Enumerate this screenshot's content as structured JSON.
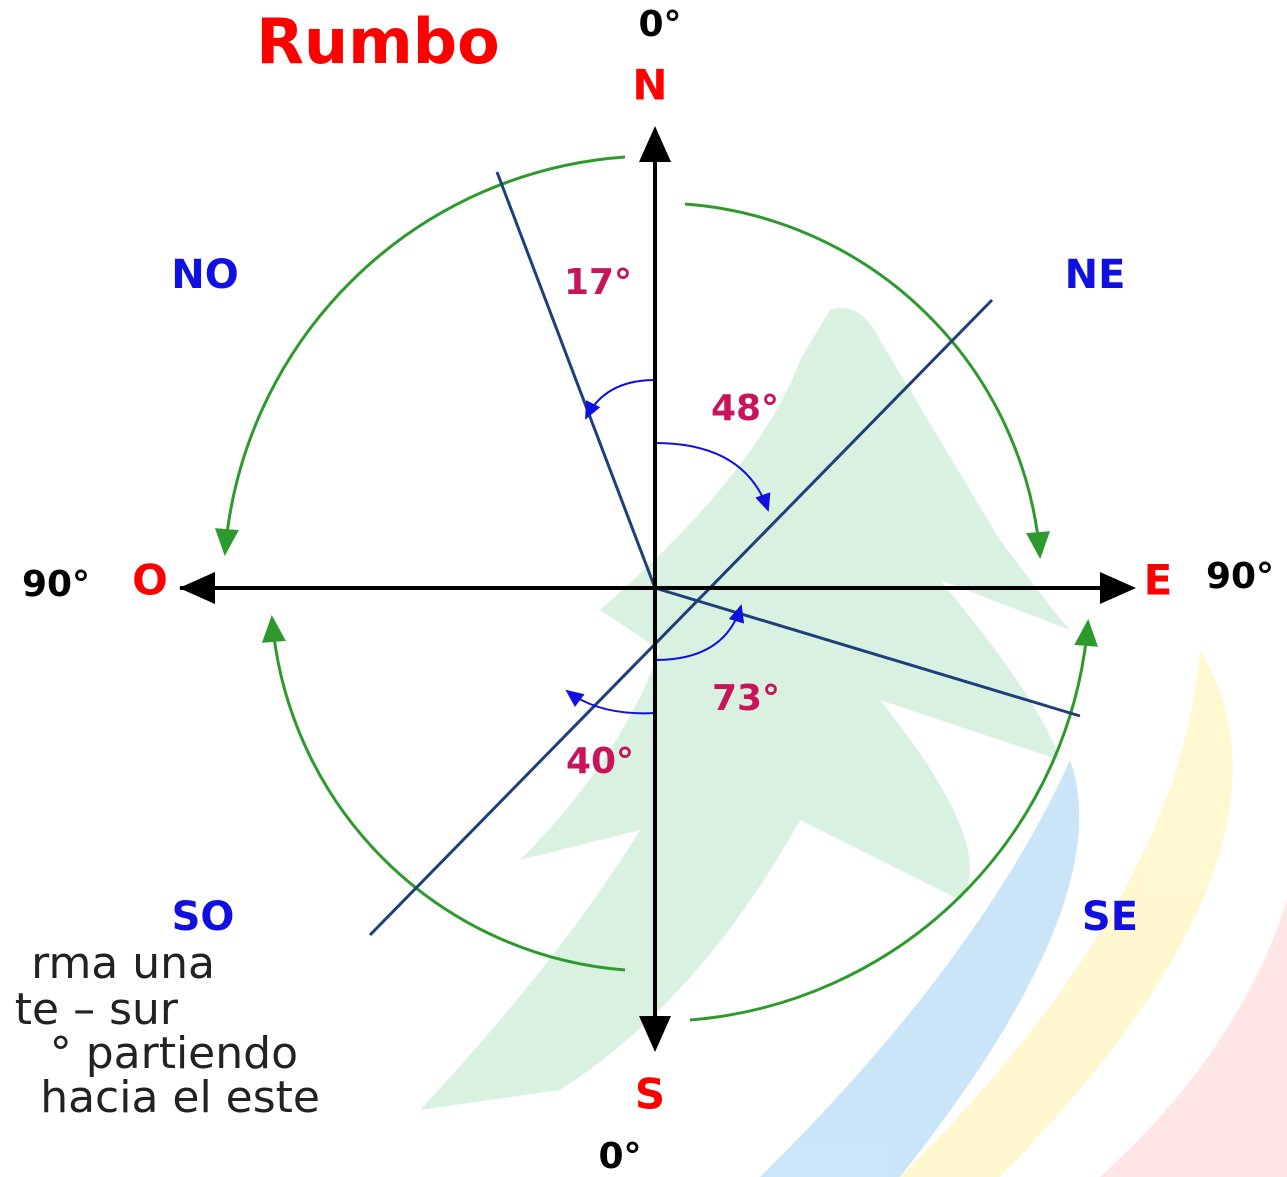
{
  "title": "Rumbo",
  "cardinals": {
    "north": "N",
    "south": "S",
    "east": "E",
    "west": "O"
  },
  "degrees": {
    "north": "0°",
    "south": "0°",
    "east": "90°",
    "west": "90°"
  },
  "quadrants": {
    "ne": "NE",
    "no": "NO",
    "se": "SE",
    "so": "SO"
  },
  "angles": {
    "no": "17°",
    "ne": "48°",
    "se": "73°",
    "so": "40°"
  },
  "cut_text": [
    "rma una",
    "te – sur",
    "° partiendo",
    "hacia el este"
  ]
}
